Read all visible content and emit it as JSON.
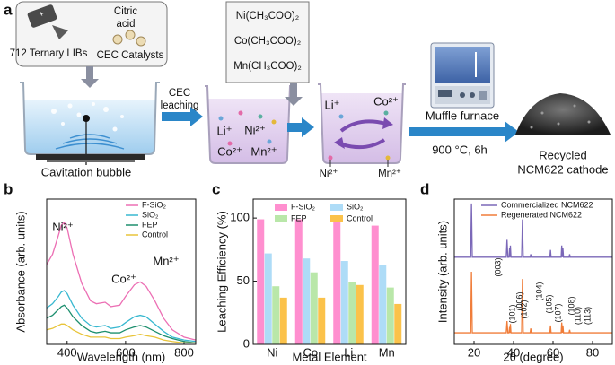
{
  "diagram": {
    "panel_label": "a",
    "battery": "712 Ternary LIBs",
    "citric_acid": [
      "Citric",
      "acid"
    ],
    "catalysts": "CEC Catalysts",
    "bubble": "Cavitation bubble",
    "leaching": [
      "CEC",
      "leaching"
    ],
    "ions_leached": [
      "Li⁺",
      "Ni²⁺",
      "Co²⁺",
      "Mn²⁺"
    ],
    "acetates": [
      "Ni(CH₃COO)₂",
      "Co(CH₃COO)₂",
      "Mn(CH₃COO)₂"
    ],
    "ions_mixed": [
      "Li⁺",
      "Co²⁺",
      "Ni²⁺",
      "Mn²⁺"
    ],
    "furnace": "Muffle furnace",
    "condition": "900 °C, 6h",
    "product": [
      "Recycled",
      "NCM622 cathode"
    ]
  },
  "chart_data": [
    {
      "type": "line",
      "panel_label": "b",
      "xlabel": "Wavelength (nm)",
      "ylabel": "Absorbance (arb. units)",
      "xlim": [
        330,
        840
      ],
      "xticks": [
        400,
        600,
        800
      ],
      "ylim": [
        0,
        1
      ],
      "x": [
        330,
        350,
        370,
        380,
        390,
        400,
        420,
        450,
        480,
        500,
        530,
        550,
        580,
        600,
        630,
        650,
        670,
        700,
        730,
        760,
        800,
        840
      ],
      "series": [
        {
          "name": "F-SiO₂",
          "color": "#ec6fb4",
          "values": [
            0.55,
            0.62,
            0.75,
            0.82,
            0.84,
            0.8,
            0.62,
            0.42,
            0.3,
            0.28,
            0.29,
            0.26,
            0.27,
            0.33,
            0.41,
            0.43,
            0.4,
            0.3,
            0.18,
            0.1,
            0.05,
            0.03
          ]
        },
        {
          "name": "SiO₂",
          "color": "#38b8d0",
          "values": [
            0.25,
            0.28,
            0.33,
            0.36,
            0.37,
            0.35,
            0.27,
            0.18,
            0.13,
            0.12,
            0.13,
            0.11,
            0.12,
            0.15,
            0.19,
            0.2,
            0.19,
            0.14,
            0.09,
            0.05,
            0.03,
            0.02
          ]
        },
        {
          "name": "FEP",
          "color": "#1d8f6e",
          "values": [
            0.18,
            0.2,
            0.24,
            0.26,
            0.27,
            0.25,
            0.19,
            0.13,
            0.09,
            0.08,
            0.09,
            0.08,
            0.08,
            0.1,
            0.12,
            0.13,
            0.12,
            0.09,
            0.06,
            0.04,
            0.02,
            0.01
          ]
        },
        {
          "name": "Control",
          "color": "#e8c43a",
          "values": [
            0.1,
            0.11,
            0.13,
            0.14,
            0.14,
            0.13,
            0.1,
            0.07,
            0.05,
            0.05,
            0.05,
            0.04,
            0.04,
            0.05,
            0.06,
            0.07,
            0.06,
            0.05,
            0.03,
            0.02,
            0.01,
            0.01
          ]
        }
      ],
      "annotations": [
        "Ni²⁺",
        "Co²⁺",
        "Mn²⁺"
      ],
      "legend": "upper right"
    },
    {
      "type": "bar",
      "panel_label": "c",
      "xlabel": "Metal Element",
      "ylabel": "Leaching Efficiency (%)",
      "categories": [
        "Ni",
        "Co",
        "Li",
        "Mn"
      ],
      "ylim": [
        0,
        115
      ],
      "yticks": [
        0,
        50,
        100
      ],
      "series": [
        {
          "name": "F-SiO₂",
          "color": "#ff8fcf",
          "values": [
            99,
            99,
            99,
            94
          ]
        },
        {
          "name": "SiO₂",
          "color": "#aedcf7",
          "values": [
            72,
            68,
            66,
            63
          ]
        },
        {
          "name": "FEP",
          "color": "#b9e7a9",
          "values": [
            46,
            57,
            49,
            45
          ]
        },
        {
          "name": "Control",
          "color": "#fbc24a",
          "values": [
            37,
            37,
            47,
            32
          ]
        }
      ],
      "legend": "upper center"
    },
    {
      "type": "line",
      "panel_label": "d",
      "xlabel": "2θ (degree)",
      "ylabel": "Intensity (arb. units)",
      "xlim": [
        10,
        90
      ],
      "xticks": [
        20,
        40,
        60,
        80
      ],
      "ylim": [
        0,
        1
      ],
      "x": [
        10,
        18.3,
        18.7,
        19.1,
        36.3,
        36.7,
        37.1,
        37.7,
        38.0,
        38.2,
        38.4,
        38.7,
        44.1,
        44.5,
        44.9,
        48.4,
        48.7,
        49.0,
        58.4,
        58.7,
        59.0,
        64.1,
        64.4,
        64.7,
        65.0,
        65.3,
        68.1,
        68.4,
        68.7,
        90
      ],
      "series": [
        {
          "name": "Commercialized NCM622",
          "color": "#7b68b8",
          "values": [
            0.6,
            0.6,
            0.97,
            0.6,
            0.6,
            0.72,
            0.6,
            0.6,
            0.66,
            0.6,
            0.68,
            0.6,
            0.6,
            0.86,
            0.6,
            0.6,
            0.62,
            0.6,
            0.6,
            0.65,
            0.6,
            0.6,
            0.68,
            0.6,
            0.66,
            0.6,
            0.6,
            0.62,
            0.6,
            0.6
          ]
        },
        {
          "name": "Regenerated NCM622",
          "color": "#f07d3a",
          "values": [
            0.08,
            0.08,
            0.5,
            0.08,
            0.08,
            0.16,
            0.08,
            0.08,
            0.12,
            0.08,
            0.14,
            0.08,
            0.08,
            0.45,
            0.08,
            0.08,
            0.11,
            0.08,
            0.08,
            0.13,
            0.08,
            0.08,
            0.15,
            0.08,
            0.13,
            0.08,
            0.08,
            0.1,
            0.08,
            0.08
          ]
        }
      ],
      "annotations": [
        "(003)",
        "(101)",
        "(006)",
        "(102)",
        "(104)",
        "(105)",
        "(107)",
        "(108)",
        "(110)",
        "(113)"
      ],
      "legend": "upper right"
    }
  ]
}
